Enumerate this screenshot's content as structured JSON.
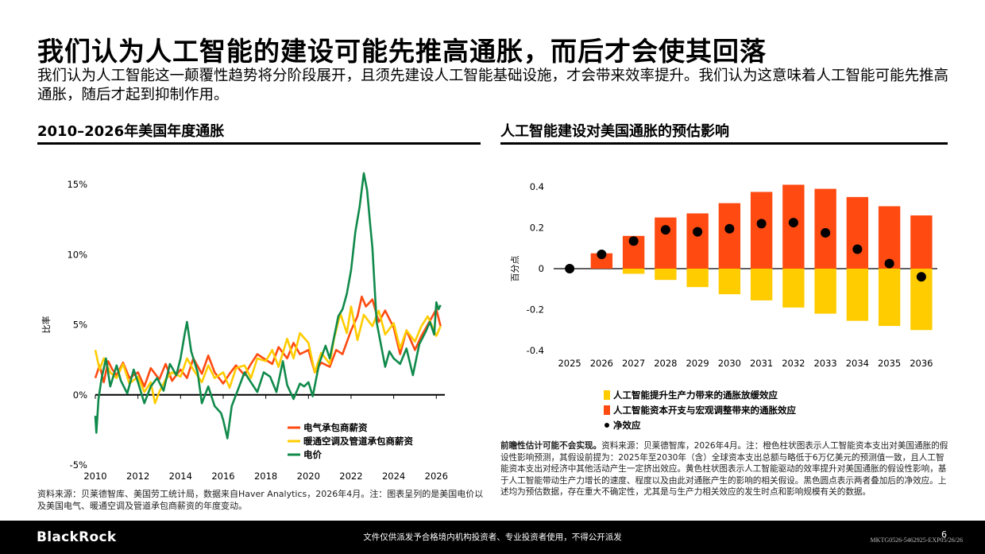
{
  "header": {
    "title": "我们认为人工智能的建设可能先推高通胀，而后才会使其回落",
    "subtitle": "我们认为人工智能这一颠覆性趋势将分阶段展开，且须先建设人工智能基础设施，才会带来效率提升。我们认为这意味着人工智能可能先推高通胀，随后才起到抑制作用。"
  },
  "left_panel": {
    "title": "2010–2026年美国年度通胀",
    "source": "资料来源：贝莱德智库、美国劳工统计局，数据来自Haver Analytics，2026年4月。注：图表呈列的是美国电价以及美国电气、暖通空调及管道承包商薪资的年度变动。"
  },
  "right_panel": {
    "title": "人工智能建设对美国通胀的预估影响",
    "note_bold": "前瞻性估计可能不会实现。",
    "note": "资料来源：贝莱德智库，2026年4月。注：橙色柱状图表示人工智能资本支出对美国通胀的假设性影响预测，其假设前提为：2025年至2030年（含）全球资本支出总额与略低于6万亿美元的预测值一致，且人工智能资本支出对经济中其他活动产生一定挤出效应。黄色柱状图表示人工智能驱动的效率提升对美国通胀的假设性影响，基于人工智能带动生产力增长的速度、程度以及由此对通胀产生的影响的相关假设。黑色圆点表示两者叠加后的净效应。上述均为预估数据，存在重大不确定性，尤其是与生产力相关效应的发生时点和影响规模有关的数据。"
  },
  "footer": {
    "brand": "BlackRock",
    "disclaimer": "文件仅供派发予合格境内机构投资者、专业投资者使用，不得公开派发",
    "code": "MKTG0526-5462925-EXP05/26/26",
    "page": "6"
  },
  "chart_data": [
    {
      "type": "line",
      "title": "2010–2026年美国年度通胀",
      "xlabel": "",
      "ylabel": "比率",
      "xlim": [
        2010,
        2026.4
      ],
      "ylim": [
        -5,
        15
      ],
      "x_ticks": [
        "2010",
        "2012",
        "2014",
        "2016",
        "2018",
        "2020",
        "2022",
        "2024",
        "2026"
      ],
      "y_ticks": [
        "-5%",
        "0%",
        "5%",
        "10%",
        "15%"
      ],
      "grid": false,
      "legend_position": "bottom-center",
      "series": [
        {
          "name": "电气承包商薪资",
          "color": "#ff4a11",
          "x": [
            2010,
            2010.2,
            2010.4,
            2010.6,
            2010.8,
            2011,
            2011.3,
            2011.6,
            2012,
            2012.3,
            2012.6,
            2013,
            2013.3,
            2013.6,
            2014,
            2014.3,
            2014.6,
            2015,
            2015.3,
            2015.6,
            2016,
            2016.3,
            2016.6,
            2017,
            2017.3,
            2017.6,
            2018,
            2018.3,
            2018.6,
            2019,
            2019.3,
            2019.6,
            2020,
            2020.3,
            2020.6,
            2021,
            2021.3,
            2021.6,
            2022,
            2022.3,
            2022.5,
            2022.7,
            2023,
            2023.3,
            2023.6,
            2024,
            2024.3,
            2024.6,
            2025,
            2025.3,
            2025.6,
            2026,
            2026.2
          ],
          "values": [
            1.2,
            2.1,
            0.9,
            2.4,
            1.8,
            1.4,
            2.3,
            1.2,
            1.6,
            0.6,
            1.9,
            1.1,
            2.2,
            1.0,
            1.8,
            1.2,
            2.6,
            1.5,
            2.8,
            1.6,
            0.8,
            1.5,
            2.1,
            1.4,
            2.2,
            2.9,
            2.5,
            2.2,
            3.4,
            2.6,
            3.7,
            2.9,
            3.2,
            1.6,
            2.3,
            2.0,
            3.2,
            2.9,
            4.6,
            5.6,
            7.0,
            6.3,
            6.8,
            5.2,
            6.0,
            4.8,
            2.9,
            4.6,
            3.2,
            4.2,
            5.0,
            6.1,
            4.9
          ]
        },
        {
          "name": "暖通空调及管道承包商薪资",
          "color": "#ffcc00",
          "x": [
            2010,
            2010.2,
            2010.4,
            2010.7,
            2011,
            2011.3,
            2011.6,
            2012,
            2012.3,
            2012.6,
            2012.8,
            2013,
            2013.3,
            2013.6,
            2014,
            2014.3,
            2014.6,
            2015,
            2015.3,
            2015.6,
            2016,
            2016.3,
            2016.6,
            2017,
            2017.3,
            2017.6,
            2018,
            2018.3,
            2018.6,
            2019,
            2019.3,
            2019.6,
            2020,
            2020.3,
            2020.6,
            2021,
            2021.2,
            2021.5,
            2021.8,
            2022,
            2022.3,
            2022.6,
            2023,
            2023.3,
            2023.6,
            2024,
            2024.3,
            2024.6,
            2025,
            2025.3,
            2025.6,
            2026,
            2026.2
          ],
          "values": [
            3.2,
            1.8,
            2.6,
            1.6,
            1.2,
            2.2,
            0.8,
            1.3,
            0.2,
            0.9,
            -0.6,
            0.2,
            1.1,
            1.6,
            1.3,
            2.6,
            1.8,
            0.9,
            2.1,
            1.2,
            1.6,
            0.5,
            1.9,
            2.1,
            1.2,
            2.6,
            2.4,
            3.2,
            2.0,
            4.0,
            2.6,
            4.4,
            3.7,
            1.6,
            3.0,
            2.2,
            4.0,
            5.8,
            4.4,
            6.3,
            3.9,
            5.7,
            4.9,
            6.0,
            4.3,
            5.1,
            3.3,
            4.6,
            3.8,
            4.9,
            5.6,
            4.2,
            4.9
          ]
        },
        {
          "name": "电价",
          "color": "#108a4b",
          "x": [
            2010,
            2010.05,
            2010.15,
            2010.3,
            2010.5,
            2010.7,
            2011,
            2011.2,
            2011.5,
            2011.8,
            2012,
            2012.3,
            2012.6,
            2012.9,
            2013.2,
            2013.5,
            2013.8,
            2014,
            2014.2,
            2014.3,
            2014.5,
            2014.8,
            2015,
            2015.3,
            2015.6,
            2015.9,
            2016,
            2016.2,
            2016.4,
            2016.7,
            2017,
            2017.3,
            2017.6,
            2017.9,
            2018.2,
            2018.5,
            2018.8,
            2019,
            2019.3,
            2019.6,
            2019.8,
            2020,
            2020.2,
            2020.5,
            2020.8,
            2021,
            2021.2,
            2021.4,
            2021.6,
            2021.8,
            2022,
            2022.2,
            2022.4,
            2022.6,
            2022.75,
            2022.9,
            2023,
            2023.2,
            2023.4,
            2023.6,
            2023.8,
            2024,
            2024.3,
            2024.6,
            2024.9,
            2025.2,
            2025.5,
            2025.7,
            2025.9,
            2026,
            2026.1,
            2026.2
          ],
          "values": [
            -1.5,
            -2.7,
            -0.3,
            1.2,
            2.6,
            0.6,
            2.1,
            1.0,
            0.1,
            1.8,
            0.9,
            -0.6,
            0.6,
            1.2,
            0.3,
            2.2,
            1.4,
            2.6,
            4.4,
            5.2,
            3.1,
            1.6,
            -0.6,
            0.6,
            -0.8,
            -1.3,
            -1.8,
            -3.1,
            -0.8,
            0.4,
            1.6,
            0.9,
            0.2,
            1.6,
            1.3,
            0.2,
            2.4,
            0.7,
            -0.3,
            0.8,
            0.6,
            0.9,
            -0.1,
            2.2,
            3.5,
            2.6,
            4.1,
            5.6,
            6.1,
            7.2,
            8.9,
            11.6,
            13.4,
            15.8,
            14.6,
            12.1,
            10.5,
            5.2,
            3.6,
            2.0,
            3.1,
            2.6,
            2.2,
            3.3,
            1.4,
            3.6,
            4.5,
            5.2,
            4.3,
            6.6,
            6.1,
            6.4
          ]
        }
      ]
    },
    {
      "type": "bar",
      "title": "人工智能建设对美国通胀的预估影响",
      "xlabel": "",
      "ylabel": "百分点",
      "ylim": [
        -0.4,
        0.4
      ],
      "y_ticks": [
        "0.4",
        "0.2",
        "0",
        "-0.2",
        "-0.4"
      ],
      "grid": false,
      "legend_position": "bottom",
      "categories": [
        "2025",
        "2026",
        "2027",
        "2028",
        "2029",
        "2030",
        "2031",
        "2032",
        "2033",
        "2034",
        "2035",
        "2036"
      ],
      "series": [
        {
          "name": "人工智能提升生产力带来的通胀放缓效应",
          "color": "#ffcc00",
          "values": [
            0,
            0,
            -0.025,
            -0.055,
            -0.09,
            -0.125,
            -0.155,
            -0.19,
            -0.22,
            -0.255,
            -0.28,
            -0.3
          ]
        },
        {
          "name": "人工智能资本开支与宏观调整带来的通胀效应",
          "color": "#ff4a11",
          "values": [
            0,
            0.075,
            0.16,
            0.25,
            0.27,
            0.32,
            0.375,
            0.41,
            0.39,
            0.35,
            0.305,
            0.26
          ]
        },
        {
          "name": "净效应",
          "color": "#000000",
          "style": "dot",
          "values": [
            0,
            0.07,
            0.135,
            0.19,
            0.18,
            0.195,
            0.22,
            0.225,
            0.175,
            0.095,
            0.025,
            -0.04
          ]
        }
      ]
    }
  ]
}
